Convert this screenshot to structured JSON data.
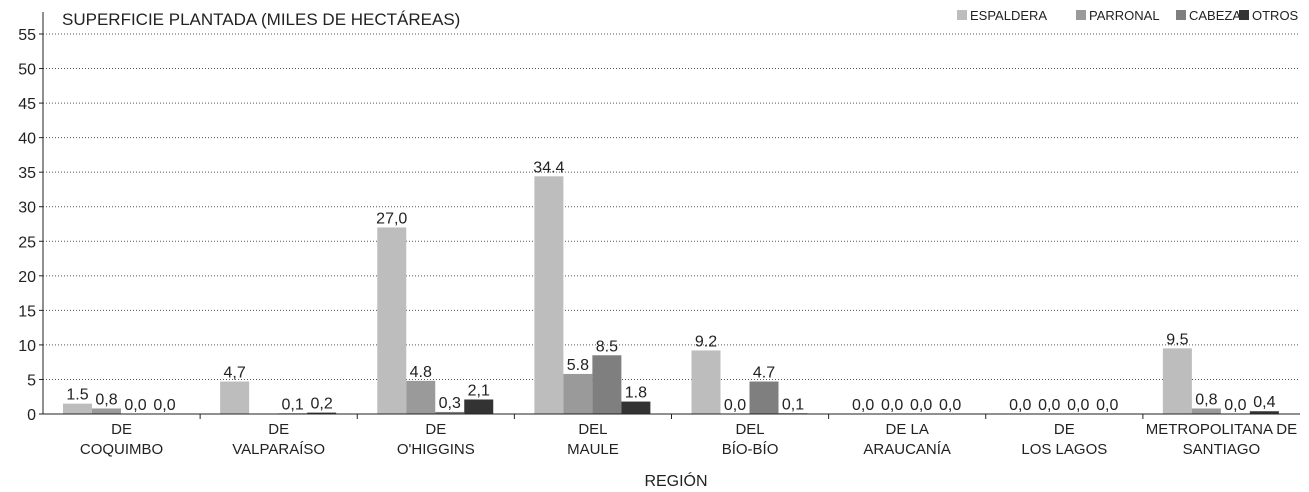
{
  "chart_data": {
    "type": "bar",
    "title": "SUPERFICIE PLANTADA (MILES DE HECTÁREAS)",
    "xlabel": "REGIÓN",
    "ylabel": "",
    "ylim": [
      0,
      55
    ],
    "yticks": [
      "0",
      "5",
      "10",
      "15",
      "20",
      "25",
      "30",
      "35",
      "40",
      "45",
      "50",
      "55"
    ],
    "grid": true,
    "legend_position": "top-right",
    "categories": [
      [
        "DE",
        "COQUIMBO"
      ],
      [
        "DE",
        "VALPARAÍSO"
      ],
      [
        "DE",
        "O'HIGGINS"
      ],
      [
        "DEL",
        "MAULE"
      ],
      [
        "DEL",
        "BÍO-BÍO"
      ],
      [
        "DE LA",
        "ARAUCANÍA"
      ],
      [
        "DE",
        "LOS LAGOS"
      ],
      [
        "METROPOLITANA DE",
        "SANTIAGO"
      ]
    ],
    "series": [
      {
        "name": "ESPALDERA",
        "color": "#bdbdbd",
        "values": [
          1.5,
          4.7,
          27.0,
          34.4,
          9.2,
          0.0,
          0.0,
          9.5
        ],
        "labels": [
          "1.5",
          "4,7",
          "27,0",
          "34.4",
          "9.2",
          "0,0",
          "0,0",
          "9.5"
        ]
      },
      {
        "name": "PARRONAL",
        "color": "#9a9a9a",
        "values": [
          0.8,
          0.0,
          4.8,
          5.8,
          0.0,
          0.0,
          0.0,
          0.8
        ],
        "labels": [
          "0,8",
          "",
          "4.8",
          "5.8",
          "0,0",
          "0,0",
          "0,0",
          "0,8"
        ]
      },
      {
        "name": "CABEZA",
        "color": "#7f7f7f",
        "values": [
          0.0,
          0.1,
          0.3,
          8.5,
          4.7,
          0.0,
          0.0,
          0.0
        ],
        "labels": [
          "0,0",
          "0,1",
          "0,3",
          "8.5",
          "4.7",
          "0,0",
          "0,0",
          "0,0"
        ]
      },
      {
        "name": "OTROS",
        "color": "#333333",
        "values": [
          0.0,
          0.2,
          2.1,
          1.8,
          0.1,
          0.0,
          0.0,
          0.4
        ],
        "labels": [
          "0,0",
          "0,2",
          "2,1",
          "1.8",
          "0,1",
          "0,0",
          "0,0",
          "0,4"
        ]
      }
    ]
  }
}
